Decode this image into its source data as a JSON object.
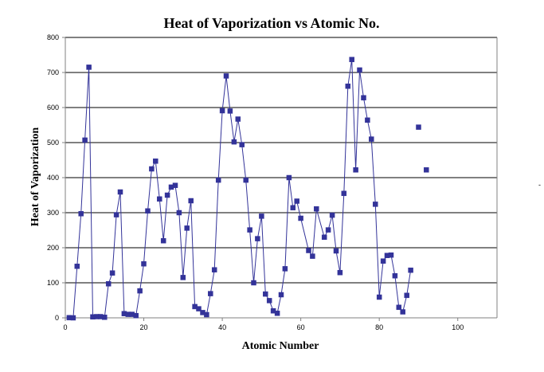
{
  "chart_data": {
    "type": "scatter",
    "title": "Heat of Vaporization vs Atomic No.",
    "xlabel": "Atomic Number",
    "ylabel": "Heat of Vaporization",
    "xlim": [
      0,
      110
    ],
    "ylim": [
      0,
      800
    ],
    "xticks": [
      0,
      20,
      40,
      60,
      80,
      100
    ],
    "yticks": [
      0,
      100,
      200,
      300,
      400,
      500,
      600,
      700,
      800
    ],
    "grid": "horizontal",
    "legend": "none",
    "colors": {
      "series": "#333399",
      "grid": "#000000",
      "axis": "#808080"
    },
    "series": [
      {
        "style": "line+marker",
        "x": [
          1,
          2,
          3,
          4,
          5,
          6,
          7,
          8,
          9,
          10,
          11,
          12,
          13,
          14,
          15,
          16,
          17,
          18,
          19,
          20,
          21,
          22,
          23,
          24,
          25,
          26,
          27,
          28,
          29,
          30,
          31,
          32,
          33,
          34,
          35,
          36,
          37,
          38,
          39,
          40,
          41,
          42,
          43,
          44,
          45,
          46,
          47,
          48,
          49,
          50,
          51,
          52,
          53,
          54,
          55,
          56,
          57,
          58,
          59,
          60,
          62,
          63,
          64,
          66,
          67,
          68,
          69,
          70,
          71,
          72,
          73,
          74,
          75,
          76,
          77,
          78,
          79,
          80,
          81,
          82,
          83,
          84,
          85,
          86,
          87,
          88
        ],
        "y": [
          0.5,
          0.1,
          147,
          297,
          507,
          715,
          2.8,
          3.4,
          3.3,
          1.7,
          97,
          128,
          294,
          359,
          12,
          10,
          10,
          6.4,
          77,
          154,
          305,
          425,
          447,
          339,
          220,
          350,
          373,
          378,
          300,
          115,
          256,
          334,
          32,
          26,
          15,
          9,
          69,
          137,
          393,
          591,
          690,
          590,
          502,
          567,
          494,
          393,
          251,
          100,
          226,
          290,
          68,
          49,
          20,
          13,
          66,
          140,
          400,
          314,
          333,
          284,
          192,
          176,
          311,
          230,
          251,
          293,
          191,
          129,
          355,
          661,
          737,
          422,
          707,
          628,
          564,
          510,
          324,
          59,
          162,
          178,
          179,
          120,
          30,
          17,
          64,
          136
        ]
      },
      {
        "style": "marker",
        "x": [
          90,
          92
        ],
        "y": [
          544,
          422
        ]
      }
    ]
  }
}
